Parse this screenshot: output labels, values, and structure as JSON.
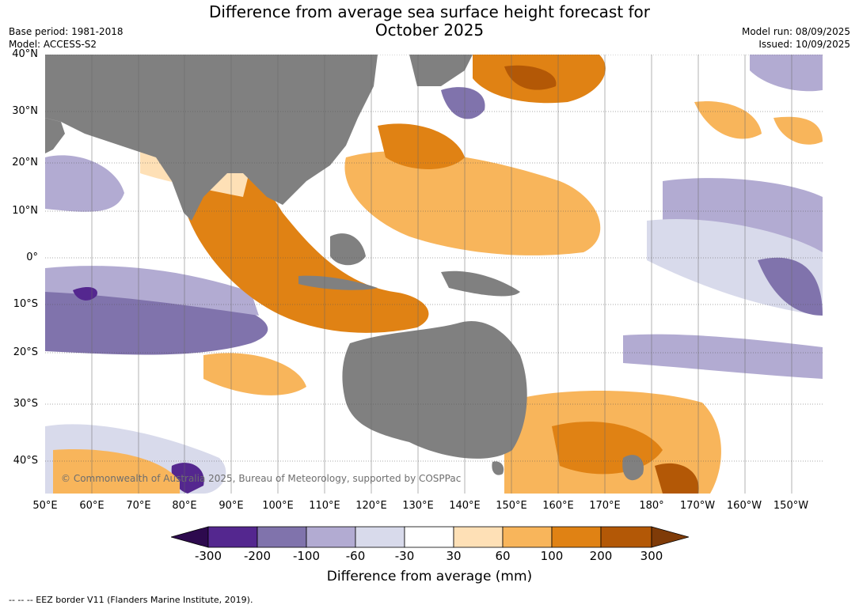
{
  "title": {
    "line1": "Difference from average sea surface height forecast for",
    "line2": "October 2025"
  },
  "meta_left": {
    "base_period": "Base period: 1981-2018",
    "model": "Model: ACCESS-S2"
  },
  "meta_right": {
    "model_run": "Model run: 08/09/2025",
    "issued": "Issued: 10/09/2025"
  },
  "map": {
    "land_color": "#808080",
    "ocean_color": "#ffffff",
    "copyright": "© Commonwealth of Australia 2025, Bureau of Meteorology, supported by COSPPac"
  },
  "lat_labels": [
    "40°N",
    "30°N",
    "20°N",
    "10°N",
    "0°",
    "10°S",
    "20°S",
    "30°S",
    "40°S"
  ],
  "lon_labels": [
    "50°E",
    "60°E",
    "70°E",
    "80°E",
    "90°E",
    "100°E",
    "110°E",
    "120°E",
    "130°E",
    "140°E",
    "150°E",
    "160°E",
    "170°E",
    "180°",
    "170°W",
    "160°W",
    "150°W"
  ],
  "colorbar": {
    "ticks": [
      "-300",
      "-200",
      "-100",
      "-60",
      "-30",
      "30",
      "60",
      "100",
      "200",
      "300"
    ],
    "colors": [
      "#2d0a4e",
      "#54278f",
      "#8073ac",
      "#b2abd2",
      "#d8daeb",
      "#ffffff",
      "#fee0b6",
      "#f8b55b",
      "#e08214",
      "#b35806",
      "#7f3b08"
    ],
    "label": "Difference from average (mm)"
  },
  "footnote": "--  --  -- EEZ border V11 (Flanders Marine Institute, 2019)."
}
